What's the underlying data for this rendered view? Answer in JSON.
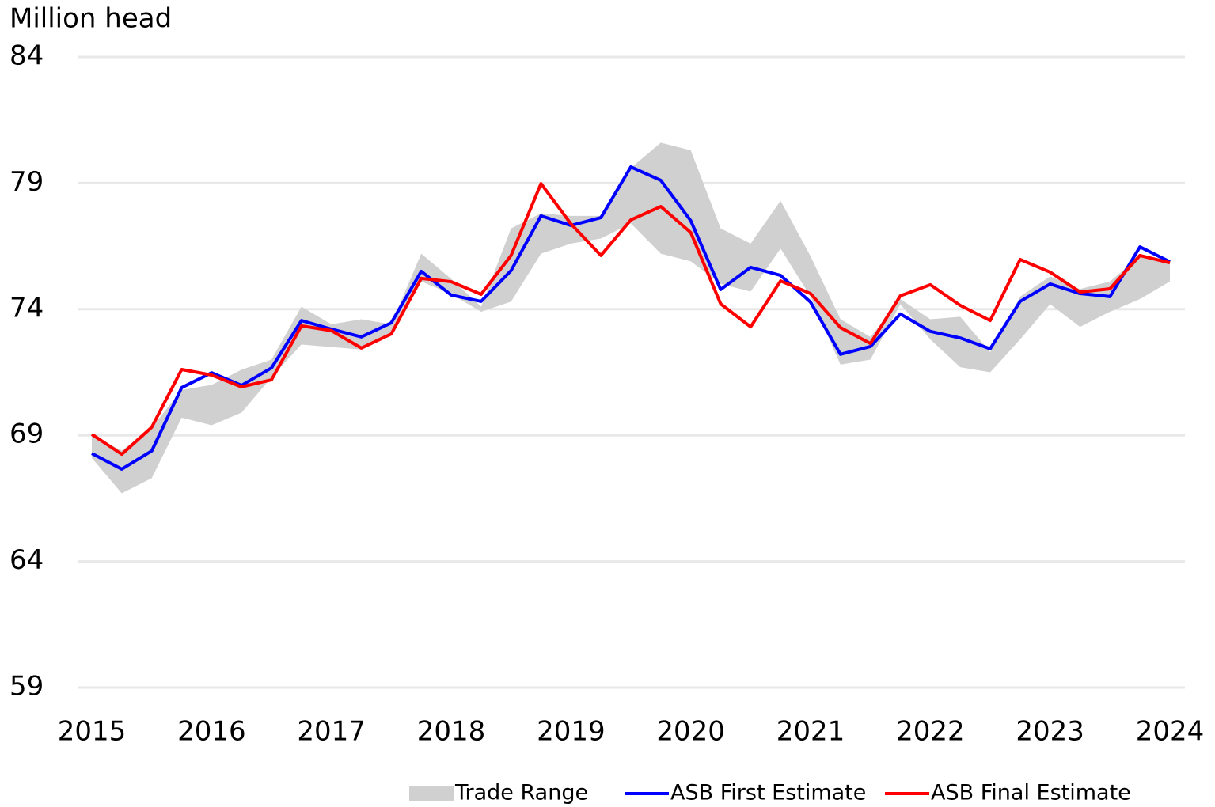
{
  "chart_data": {
    "type": "line",
    "y_label": "Million head",
    "x": [
      2015,
      2015.25,
      2015.5,
      2015.75,
      2016,
      2016.25,
      2016.5,
      2016.75,
      2017,
      2017.25,
      2017.5,
      2017.75,
      2018,
      2018.25,
      2018.5,
      2018.75,
      2019,
      2019.25,
      2019.5,
      2019.75,
      2020,
      2020.25,
      2020.5,
      2020.75,
      2021,
      2021.25,
      2021.5,
      2021.75,
      2022,
      2022.25,
      2022.5,
      2022.75,
      2023,
      2023.25,
      2023.5,
      2023.75,
      2024
    ],
    "xlim": [
      2015,
      2024
    ],
    "xticks": [
      2015,
      2016,
      2017,
      2018,
      2019,
      2020,
      2021,
      2022,
      2023,
      2024
    ],
    "ylim": [
      59,
      84
    ],
    "yticks": [
      59,
      64,
      69,
      74,
      79,
      84
    ],
    "grid": true,
    "legend": "bottom",
    "series": [
      {
        "name": "Trade Range",
        "color": "#d0d0d0",
        "type": "range",
        "high": [
          69.0,
          68.4,
          69.3,
          70.8,
          71.0,
          71.6,
          72.0,
          74.1,
          73.4,
          73.6,
          73.4,
          76.2,
          75.2,
          74.1,
          77.2,
          77.8,
          77.7,
          77.7,
          79.6,
          80.6,
          80.3,
          77.2,
          76.6,
          78.3,
          76.1,
          73.6,
          72.9,
          74.4,
          73.6,
          73.7,
          72.3,
          74.5,
          75.3,
          74.8,
          75.1,
          76.1,
          75.9
        ],
        "low": [
          68.1,
          66.7,
          67.3,
          69.7,
          69.4,
          69.9,
          71.3,
          72.6,
          72.5,
          72.4,
          73.1,
          75.1,
          74.6,
          73.9,
          74.3,
          76.2,
          76.6,
          76.8,
          77.4,
          76.2,
          75.9,
          75.0,
          74.7,
          76.4,
          74.5,
          71.8,
          72.0,
          74.2,
          72.8,
          71.7,
          71.5,
          72.8,
          74.2,
          73.3,
          73.9,
          74.4,
          75.1
        ]
      },
      {
        "name": "ASB First Estimate",
        "color": "#0000ff",
        "values": [
          68.28,
          67.66,
          68.38,
          70.89,
          71.48,
          70.98,
          71.67,
          73.55,
          73.21,
          72.9,
          73.46,
          75.5,
          74.56,
          74.31,
          75.53,
          77.7,
          77.32,
          77.63,
          79.64,
          79.11,
          77.51,
          74.78,
          75.66,
          75.34,
          74.28,
          72.21,
          72.52,
          73.81,
          73.12,
          72.86,
          72.43,
          74.31,
          75.0,
          74.62,
          74.5,
          76.47,
          75.88
        ]
      },
      {
        "name": "ASB Final Estimate",
        "color": "#ff0000",
        "values": [
          69.04,
          68.25,
          69.32,
          71.61,
          71.39,
          70.92,
          71.2,
          73.34,
          73.15,
          72.46,
          73.02,
          75.22,
          75.09,
          74.59,
          76.13,
          78.98,
          77.38,
          76.13,
          77.54,
          78.07,
          77.04,
          74.21,
          73.3,
          75.12,
          74.62,
          73.27,
          72.64,
          74.53,
          74.97,
          74.15,
          73.55,
          75.97,
          75.47,
          74.68,
          74.81,
          76.13,
          75.84
        ]
      }
    ]
  }
}
